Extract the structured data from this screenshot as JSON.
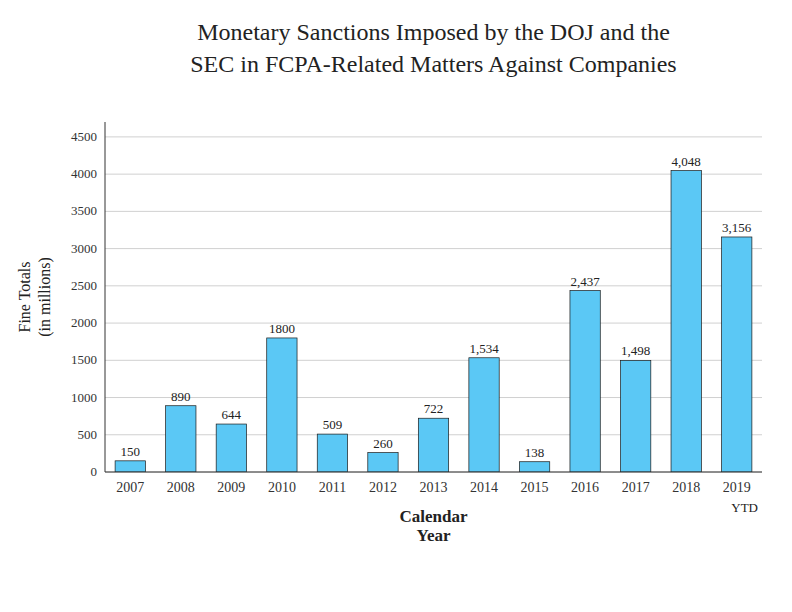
{
  "chart_data": {
    "type": "bar",
    "title": [
      "Monetary Sanctions Imposed by the DOJ and the",
      "SEC in FCPA-Related Matters Against Companies"
    ],
    "x_label": [
      "Calendar",
      "Year"
    ],
    "y_label": [
      "Fine Totals",
      "(in millions)"
    ],
    "annotation": "YTD",
    "categories": [
      "2007",
      "2008",
      "2009",
      "2010",
      "2011",
      "2012",
      "2013",
      "2014",
      "2015",
      "2016",
      "2017",
      "2018",
      "2019"
    ],
    "values": [
      150,
      890,
      644,
      1800,
      509,
      260,
      722,
      1534,
      138,
      2437,
      1498,
      4048,
      3156
    ],
    "value_labels": [
      "150",
      "890",
      "644",
      "1800",
      "509",
      "260",
      "722",
      "1,534",
      "138",
      "2,437",
      "1,498",
      "4,048",
      "3,156"
    ],
    "data_labels": true,
    "color": "#5BC8F5",
    "ylim": [
      0,
      4700
    ],
    "yticks": [
      0,
      500,
      1000,
      1500,
      2000,
      2500,
      3000,
      3500,
      4000,
      4500
    ],
    "grid": true
  }
}
